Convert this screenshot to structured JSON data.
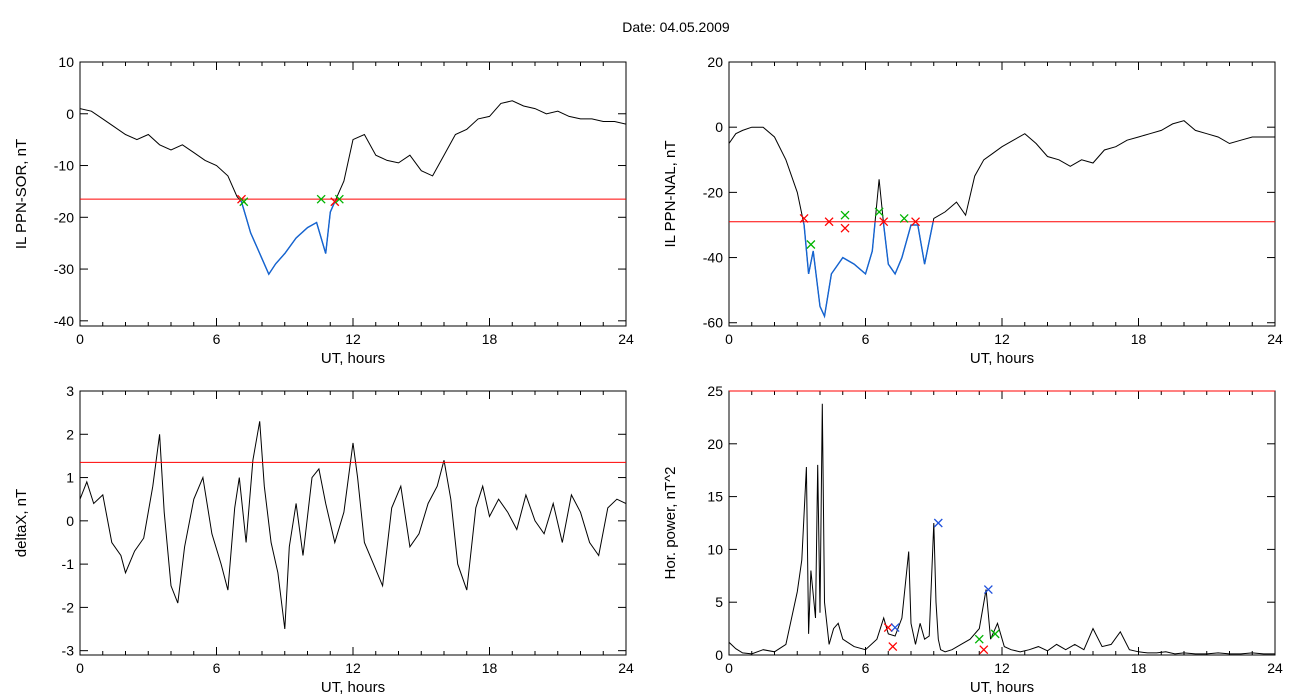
{
  "date_label": "Date:  04.05.2009",
  "colors": {
    "black": "#000000",
    "blue": "#1464d2",
    "red": "#ff0000",
    "green": "#00b400",
    "cross_blue": "#1e50dc"
  },
  "chart_data": [
    {
      "type": "line",
      "ylabel": "IL PPN-SOR, nT",
      "xlabel": "UT, hours",
      "xlim": [
        0,
        24
      ],
      "xticks": [
        0,
        6,
        12,
        18,
        24
      ],
      "ylim": [
        -41,
        10
      ],
      "yticks": [
        10,
        0,
        -10,
        -20,
        -30,
        -40
      ],
      "threshold": -16.5,
      "below_threshold_color": "blue",
      "series": {
        "x": [
          0,
          0.5,
          1,
          1.5,
          2,
          2.5,
          3,
          3.5,
          4,
          4.5,
          5,
          5.5,
          6,
          6.5,
          6.9,
          7.1,
          7.3,
          7.5,
          7.8,
          8.0,
          8.3,
          8.6,
          9.0,
          9.5,
          10.0,
          10.4,
          10.8,
          11.0,
          11.2,
          11.3,
          11.6,
          12.0,
          12.5,
          13,
          13.5,
          14,
          14.5,
          15,
          15.5,
          16,
          16.5,
          17,
          17.5,
          18,
          18.5,
          19,
          19.5,
          20,
          20.5,
          21,
          21.5,
          22,
          22.5,
          23,
          23.5,
          24
        ],
        "y": [
          1,
          0.5,
          -1,
          -2.5,
          -4,
          -5,
          -4,
          -6,
          -7,
          -6,
          -7.5,
          -9,
          -10,
          -12,
          -16,
          -17,
          -20,
          -23,
          -26,
          -28,
          -31,
          -29,
          -27,
          -24,
          -22,
          -21,
          -27,
          -19,
          -17,
          -16,
          -13,
          -5,
          -4,
          -8,
          -9,
          -9.5,
          -8,
          -11,
          -12,
          -8,
          -4,
          -3,
          -1,
          -0.5,
          2,
          2.5,
          1.5,
          1,
          0,
          0.5,
          -0.5,
          -1,
          -1,
          -1.5,
          -1.5,
          -2
        ]
      },
      "crosses": [
        {
          "x": 7.1,
          "y": -16.5,
          "color": "red"
        },
        {
          "x": 7.2,
          "y": -17,
          "color": "green"
        },
        {
          "x": 10.6,
          "y": -16.5,
          "color": "green"
        },
        {
          "x": 11.2,
          "y": -17,
          "color": "red"
        },
        {
          "x": 11.4,
          "y": -16.5,
          "color": "green"
        }
      ]
    },
    {
      "type": "line",
      "ylabel": "IL PPN-NAL, nT",
      "xlabel": "UT, hours",
      "xlim": [
        0,
        24
      ],
      "xticks": [
        0,
        6,
        12,
        18,
        24
      ],
      "ylim": [
        -61,
        20
      ],
      "yticks": [
        20,
        0,
        -20,
        -40,
        -60
      ],
      "threshold": -29,
      "below_threshold_color": "blue",
      "series": {
        "x": [
          0,
          0.3,
          0.6,
          1,
          1.5,
          2,
          2.5,
          3.0,
          3.3,
          3.5,
          3.7,
          4.0,
          4.2,
          4.5,
          5.0,
          5.5,
          6.0,
          6.3,
          6.6,
          6.8,
          7.0,
          7.3,
          7.6,
          8.0,
          8.3,
          8.6,
          9.0,
          9.5,
          10,
          10.4,
          10.8,
          11.2,
          11.6,
          12,
          12.5,
          13,
          13.5,
          14,
          14.5,
          15,
          15.5,
          16,
          16.5,
          17,
          17.5,
          18,
          18.5,
          19,
          19.5,
          20,
          20.5,
          21,
          21.5,
          22,
          22.5,
          23,
          23.5,
          24
        ],
        "y": [
          -5,
          -2,
          -1,
          0,
          0,
          -3,
          -10,
          -20,
          -30,
          -45,
          -38,
          -55,
          -58,
          -45,
          -40,
          -42,
          -45,
          -38,
          -16,
          -30,
          -42,
          -45,
          -40,
          -30,
          -30,
          -42,
          -28,
          -26,
          -23,
          -27,
          -15,
          -10,
          -8,
          -6,
          -4,
          -2,
          -5,
          -9,
          -10,
          -12,
          -10,
          -11,
          -7,
          -6,
          -4,
          -3,
          -2,
          -1,
          1,
          2,
          -1,
          -2,
          -3,
          -5,
          -4,
          -3,
          -3,
          -3
        ]
      },
      "crosses": [
        {
          "x": 3.3,
          "y": -28,
          "color": "red"
        },
        {
          "x": 3.6,
          "y": -36,
          "color": "green"
        },
        {
          "x": 4.4,
          "y": -29,
          "color": "red"
        },
        {
          "x": 5.1,
          "y": -27,
          "color": "green"
        },
        {
          "x": 5.1,
          "y": -31,
          "color": "red"
        },
        {
          "x": 6.6,
          "y": -26,
          "color": "green"
        },
        {
          "x": 6.8,
          "y": -29,
          "color": "red"
        },
        {
          "x": 7.7,
          "y": -28,
          "color": "green"
        },
        {
          "x": 8.2,
          "y": -29,
          "color": "red"
        }
      ]
    },
    {
      "type": "line",
      "ylabel": "deltaX, nT",
      "xlabel": "UT, hours",
      "xlim": [
        0,
        24
      ],
      "xticks": [
        0,
        6,
        12,
        18,
        24
      ],
      "ylim": [
        -3.1,
        3
      ],
      "yticks": [
        3,
        2,
        1,
        0,
        -1,
        -2,
        -3
      ],
      "threshold": 1.35,
      "series": {
        "x": [
          0,
          0.3,
          0.6,
          1,
          1.4,
          1.8,
          2.0,
          2.4,
          2.8,
          3.2,
          3.5,
          3.7,
          4.0,
          4.3,
          4.6,
          5.0,
          5.4,
          5.8,
          6.2,
          6.5,
          6.8,
          7.0,
          7.3,
          7.6,
          7.9,
          8.1,
          8.4,
          8.7,
          9.0,
          9.2,
          9.5,
          9.8,
          10.2,
          10.5,
          10.8,
          11.2,
          11.6,
          12.0,
          12.2,
          12.5,
          12.9,
          13.3,
          13.7,
          14.1,
          14.5,
          14.9,
          15.3,
          15.7,
          16.0,
          16.3,
          16.6,
          17.0,
          17.4,
          17.7,
          18.0,
          18.4,
          18.8,
          19.2,
          19.6,
          20.0,
          20.4,
          20.8,
          21.2,
          21.6,
          22.0,
          22.4,
          22.8,
          23.2,
          23.6,
          24
        ],
        "y": [
          0.5,
          0.9,
          0.4,
          0.6,
          -0.5,
          -0.8,
          -1.2,
          -0.7,
          -0.4,
          0.8,
          2.0,
          0.2,
          -1.5,
          -1.9,
          -0.6,
          0.5,
          1.0,
          -0.3,
          -1.0,
          -1.6,
          0.3,
          1.0,
          -0.5,
          1.4,
          2.3,
          0.8,
          -0.5,
          -1.2,
          -2.5,
          -0.6,
          0.4,
          -0.8,
          1.0,
          1.2,
          0.4,
          -0.5,
          0.2,
          1.8,
          1.0,
          -0.5,
          -1.0,
          -1.5,
          0.3,
          0.8,
          -0.6,
          -0.3,
          0.4,
          0.8,
          1.4,
          0.5,
          -1.0,
          -1.6,
          0.3,
          0.8,
          0.1,
          0.5,
          0.2,
          -0.2,
          0.6,
          0.0,
          -0.3,
          0.4,
          -0.5,
          0.6,
          0.2,
          -0.5,
          -0.8,
          0.3,
          0.5,
          0.4
        ]
      }
    },
    {
      "type": "line",
      "ylabel": "Hor. power, nT^2",
      "xlabel": "UT, hours",
      "xlim": [
        0,
        24
      ],
      "xticks": [
        0,
        6,
        12,
        18,
        24
      ],
      "ylim": [
        0,
        25
      ],
      "yticks": [
        25,
        20,
        15,
        10,
        5,
        0
      ],
      "threshold": 25,
      "series": {
        "x": [
          0,
          0.3,
          0.6,
          1,
          1.5,
          2.0,
          2.5,
          3.0,
          3.2,
          3.4,
          3.5,
          3.6,
          3.8,
          3.9,
          4.0,
          4.1,
          4.2,
          4.4,
          4.6,
          4.8,
          5.0,
          5.5,
          6.0,
          6.5,
          6.8,
          7.0,
          7.3,
          7.6,
          7.9,
          8.0,
          8.2,
          8.4,
          8.6,
          8.8,
          9.0,
          9.1,
          9.2,
          9.3,
          9.5,
          9.8,
          10.2,
          10.6,
          11.0,
          11.3,
          11.5,
          11.8,
          12.1,
          12.4,
          12.8,
          13.2,
          13.6,
          14.0,
          14.4,
          14.8,
          15.2,
          15.6,
          16.0,
          16.4,
          16.8,
          17.2,
          17.6,
          18.0,
          18.4,
          18.8,
          19.2,
          19.6,
          20.0,
          20.5,
          21,
          21.5,
          22,
          22.5,
          23,
          23.5,
          24
        ],
        "y": [
          1.2,
          0.6,
          0.2,
          0.1,
          0.5,
          0.3,
          1.0,
          6.0,
          9.0,
          17.8,
          2.0,
          8.0,
          3.5,
          18.0,
          4.0,
          23.8,
          5.0,
          1.0,
          2.5,
          3.0,
          1.5,
          0.8,
          0.5,
          1.5,
          3.5,
          2.0,
          1.8,
          3.5,
          9.8,
          3.0,
          1.0,
          3.0,
          1.5,
          1.8,
          12.5,
          5.0,
          1.5,
          0.5,
          0.3,
          0.5,
          1.0,
          1.5,
          2.5,
          6.2,
          1.5,
          3.0,
          0.8,
          0.5,
          0.3,
          0.5,
          0.8,
          0.4,
          1.0,
          0.5,
          1.0,
          0.5,
          2.5,
          0.8,
          1.0,
          2.2,
          0.5,
          0.3,
          0.2,
          0.2,
          0.3,
          0.1,
          0.2,
          0.1,
          0.1,
          0.2,
          0.1,
          0.1,
          0.2,
          0.1,
          0.1
        ]
      },
      "crosses": [
        {
          "x": 7.0,
          "y": 2.6,
          "color": "red"
        },
        {
          "x": 7.2,
          "y": 0.8,
          "color": "red"
        },
        {
          "x": 7.3,
          "y": 2.6,
          "color": "blue"
        },
        {
          "x": 9.2,
          "y": 12.5,
          "color": "blue"
        },
        {
          "x": 11.2,
          "y": 0.5,
          "color": "red"
        },
        {
          "x": 11.4,
          "y": 6.2,
          "color": "blue"
        },
        {
          "x": 11.0,
          "y": 1.5,
          "color": "green"
        },
        {
          "x": 11.7,
          "y": 2.0,
          "color": "green"
        }
      ]
    }
  ]
}
